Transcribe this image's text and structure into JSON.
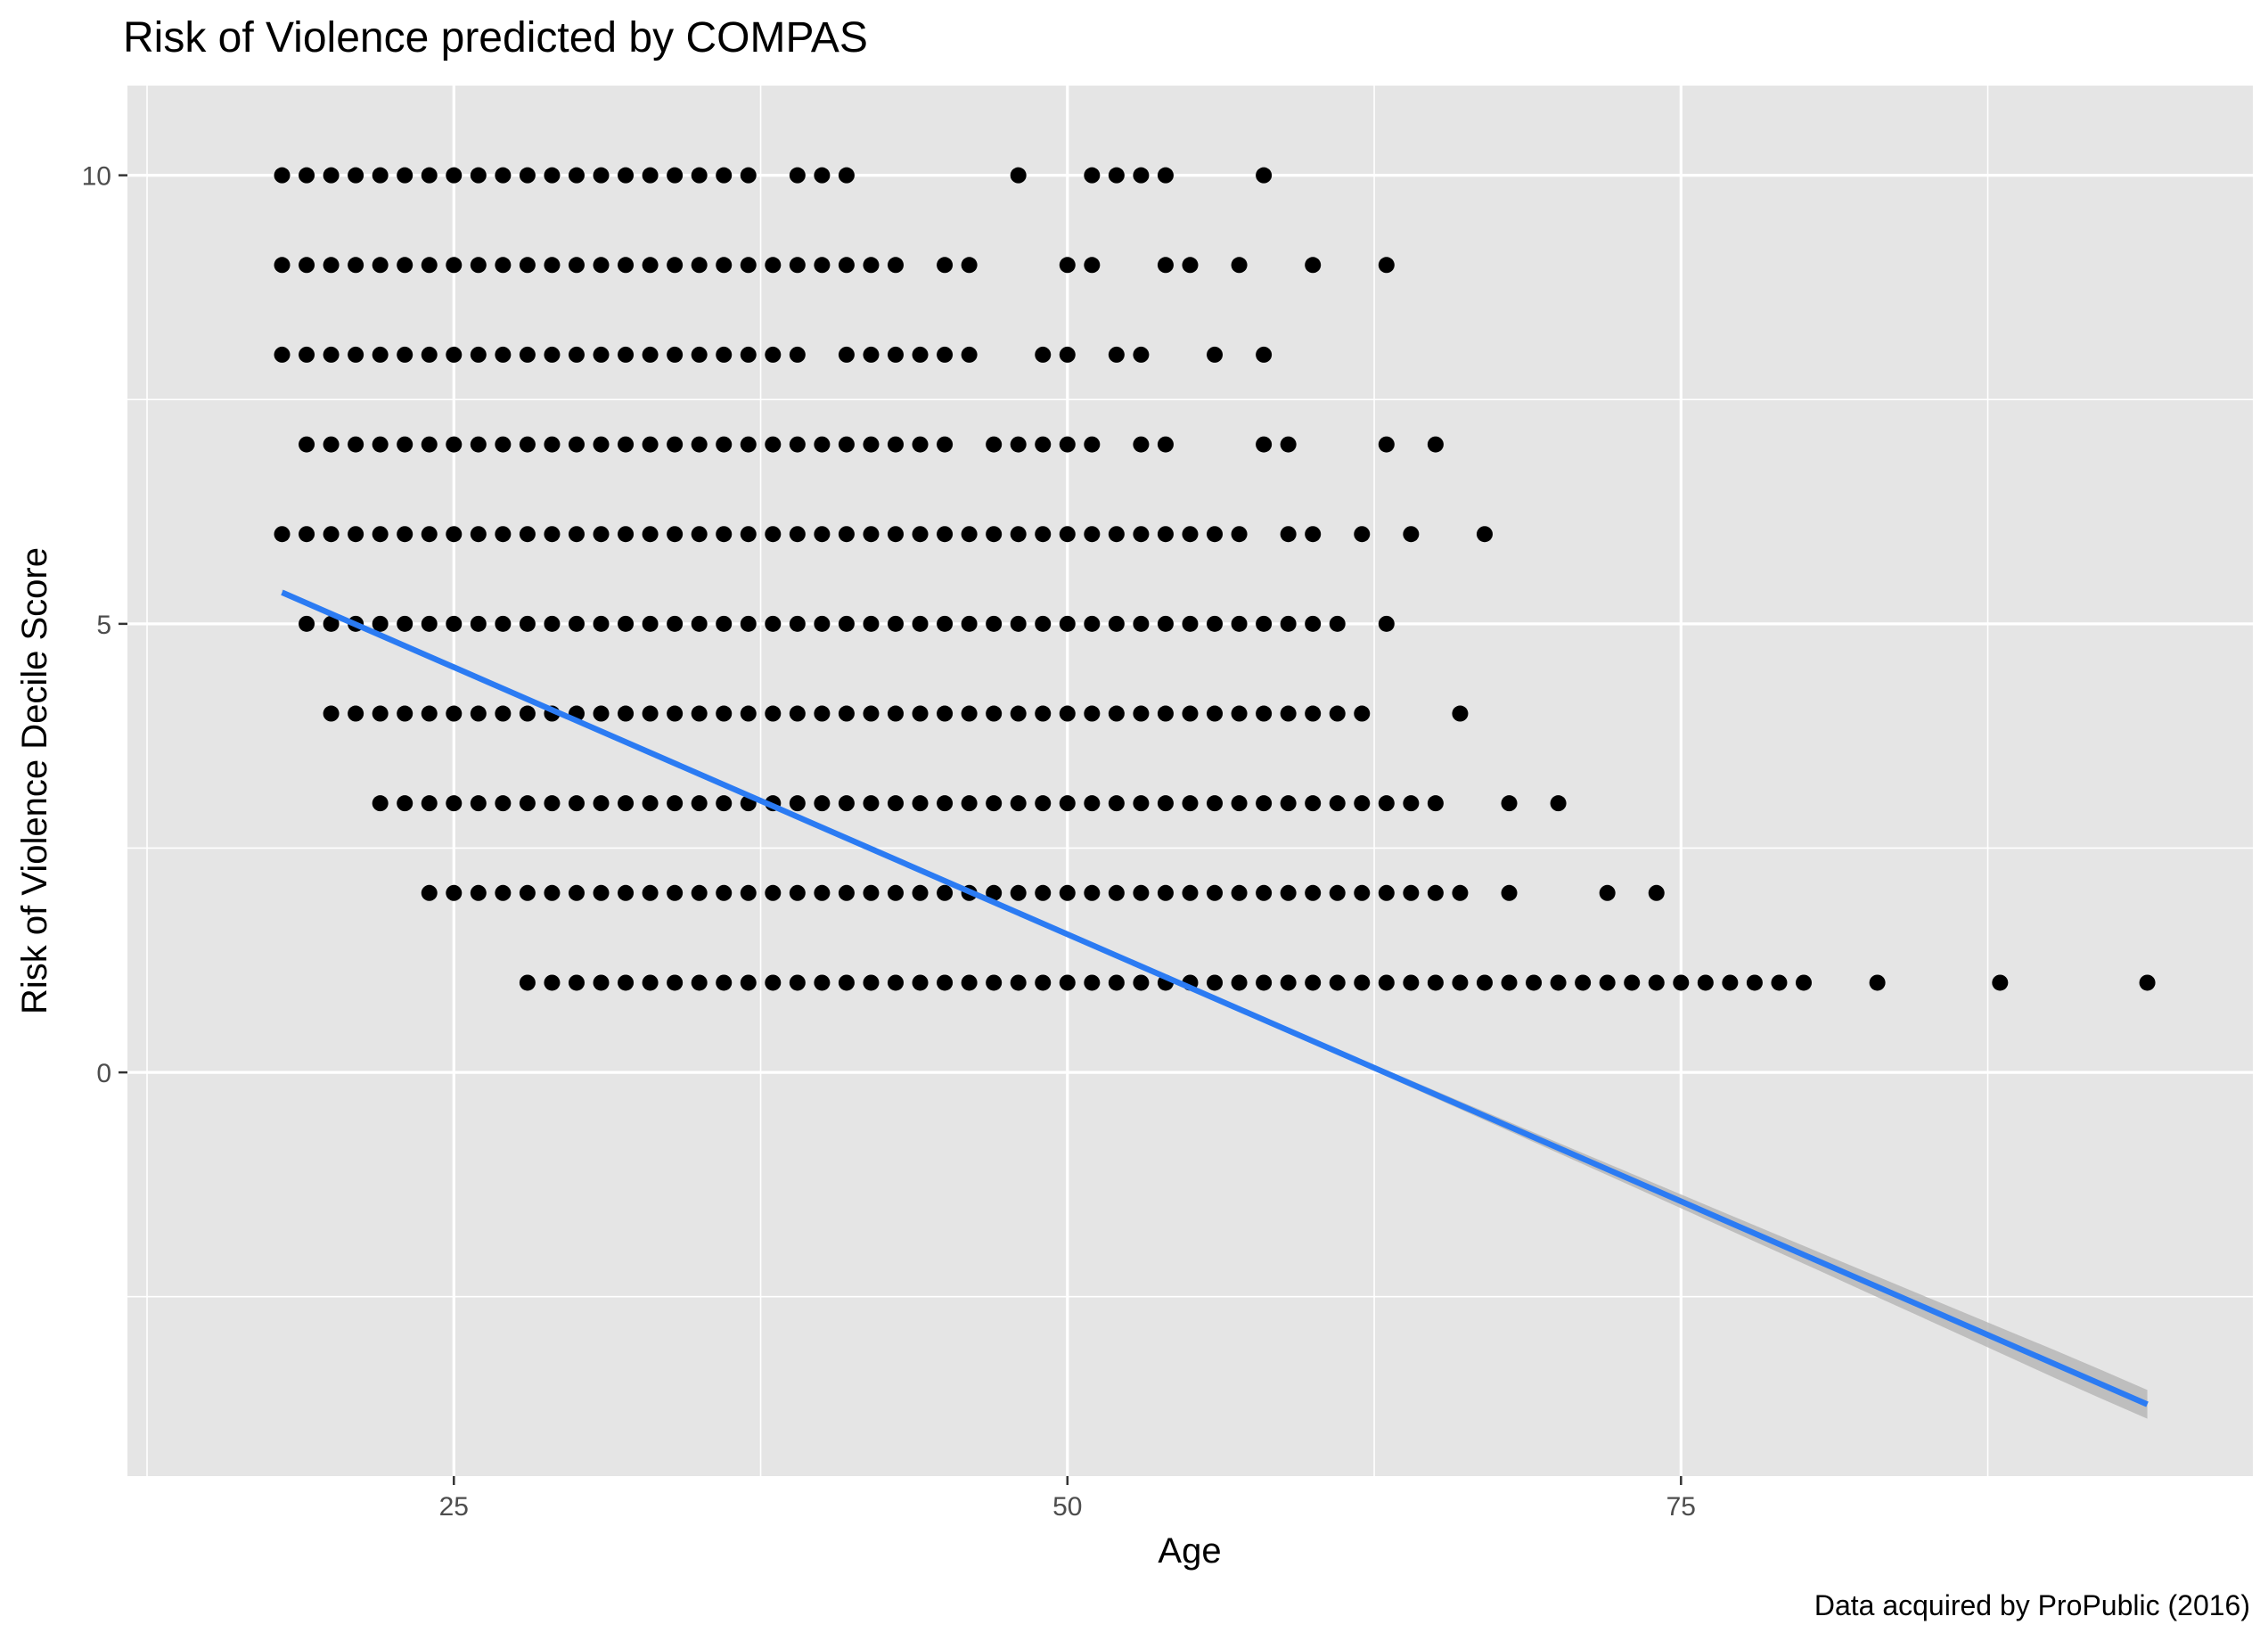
{
  "chart_data": {
    "type": "scatter",
    "title": "Risk of Violence predicted by COMPAS",
    "caption": "Data acquired by ProPublic (2016)",
    "xlabel": "Age",
    "ylabel": "Risk of Violence Decile Score",
    "xlim": [
      11.7,
      98.3
    ],
    "ylim": [
      -4.5,
      11.0
    ],
    "x_ticks": [
      25,
      50,
      75
    ],
    "y_ticks": [
      0,
      5,
      10
    ],
    "grid": true,
    "colors": {
      "panel": "#e5e5e5",
      "grid": "#ffffff",
      "points": "#000000",
      "trend": "#2b7bf3",
      "band": "#b0b0b0"
    },
    "points": [
      {
        "score": 10,
        "ages": [
          18,
          19,
          20,
          21,
          22,
          23,
          24,
          25,
          26,
          27,
          28,
          29,
          30,
          31,
          32,
          33,
          34,
          35,
          36,
          37,
          39,
          40,
          41,
          48,
          51,
          52,
          53,
          54,
          58
        ]
      },
      {
        "score": 9,
        "ages": [
          18,
          19,
          20,
          21,
          22,
          23,
          24,
          25,
          26,
          27,
          28,
          29,
          30,
          31,
          32,
          33,
          34,
          35,
          36,
          37,
          38,
          39,
          40,
          41,
          42,
          43,
          45,
          46,
          50,
          51,
          54,
          55,
          57,
          60,
          63
        ]
      },
      {
        "score": 8,
        "ages": [
          18,
          19,
          20,
          21,
          22,
          23,
          24,
          25,
          26,
          27,
          28,
          29,
          30,
          31,
          32,
          33,
          34,
          35,
          36,
          37,
          38,
          39,
          41,
          42,
          43,
          44,
          45,
          46,
          49,
          50,
          52,
          53,
          56,
          58
        ]
      },
      {
        "score": 7,
        "ages": [
          19,
          20,
          21,
          22,
          23,
          24,
          25,
          26,
          27,
          28,
          29,
          30,
          31,
          32,
          33,
          34,
          35,
          36,
          37,
          38,
          39,
          40,
          41,
          42,
          43,
          44,
          45,
          47,
          48,
          49,
          50,
          51,
          53,
          54,
          58,
          59,
          63,
          65
        ]
      },
      {
        "score": 6,
        "ages": [
          18,
          19,
          20,
          21,
          22,
          23,
          24,
          25,
          26,
          27,
          28,
          29,
          30,
          31,
          32,
          33,
          34,
          35,
          36,
          37,
          38,
          39,
          40,
          41,
          42,
          43,
          44,
          45,
          46,
          47,
          48,
          49,
          50,
          51,
          52,
          53,
          54,
          55,
          56,
          57,
          59,
          60,
          62,
          64,
          67
        ]
      },
      {
        "score": 5,
        "ages": [
          19,
          20,
          21,
          22,
          23,
          24,
          25,
          26,
          27,
          28,
          29,
          30,
          31,
          32,
          33,
          34,
          35,
          36,
          37,
          38,
          39,
          40,
          41,
          42,
          43,
          44,
          45,
          46,
          47,
          48,
          49,
          50,
          51,
          52,
          53,
          54,
          55,
          56,
          57,
          58,
          59,
          60,
          61,
          63
        ]
      },
      {
        "score": 4,
        "ages": [
          20,
          21,
          22,
          23,
          24,
          25,
          26,
          27,
          28,
          29,
          30,
          31,
          32,
          33,
          34,
          35,
          36,
          37,
          38,
          39,
          40,
          41,
          42,
          43,
          44,
          45,
          46,
          47,
          48,
          49,
          50,
          51,
          52,
          53,
          54,
          55,
          56,
          57,
          58,
          59,
          60,
          61,
          62,
          66
        ]
      },
      {
        "score": 3,
        "ages": [
          22,
          23,
          24,
          25,
          26,
          27,
          28,
          29,
          30,
          31,
          32,
          33,
          34,
          35,
          36,
          37,
          38,
          39,
          40,
          41,
          42,
          43,
          44,
          45,
          46,
          47,
          48,
          49,
          50,
          51,
          52,
          53,
          54,
          55,
          56,
          57,
          58,
          59,
          60,
          61,
          62,
          63,
          64,
          65,
          68,
          70
        ]
      },
      {
        "score": 2,
        "ages": [
          24,
          25,
          26,
          27,
          28,
          29,
          30,
          31,
          32,
          33,
          34,
          35,
          36,
          37,
          38,
          39,
          40,
          41,
          42,
          43,
          44,
          45,
          46,
          47,
          48,
          49,
          50,
          51,
          52,
          53,
          54,
          55,
          56,
          57,
          58,
          59,
          60,
          61,
          62,
          63,
          64,
          65,
          66,
          68,
          72,
          74
        ]
      },
      {
        "score": 1,
        "ages": [
          28,
          29,
          30,
          31,
          32,
          33,
          34,
          35,
          36,
          37,
          38,
          39,
          40,
          41,
          42,
          43,
          44,
          45,
          46,
          47,
          48,
          49,
          50,
          51,
          52,
          53,
          54,
          55,
          56,
          57,
          58,
          59,
          60,
          61,
          62,
          63,
          64,
          65,
          66,
          67,
          68,
          69,
          70,
          71,
          72,
          73,
          74,
          75,
          76,
          77,
          78,
          79,
          80,
          83,
          88,
          94
        ]
      }
    ],
    "trend_line": {
      "x": [
        18,
        94
      ],
      "y": [
        5.35,
        -3.7
      ]
    }
  }
}
